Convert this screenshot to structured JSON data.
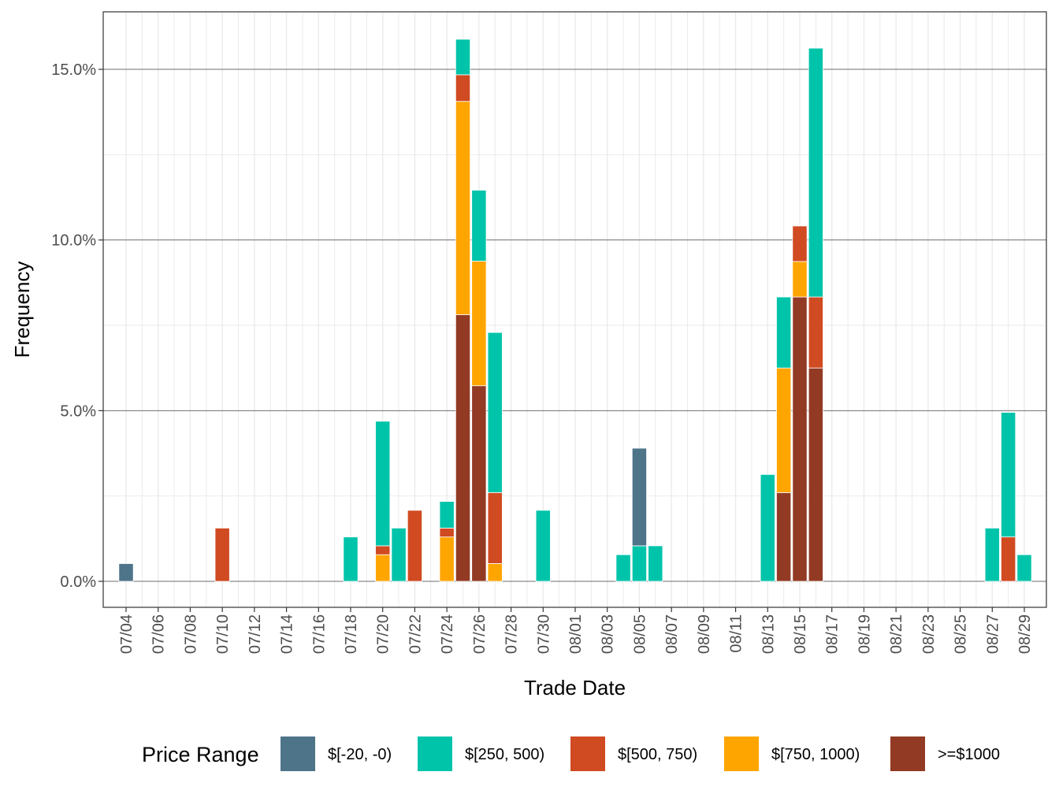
{
  "chart_data": {
    "type": "bar",
    "stacked": true,
    "xlabel": "Trade Date",
    "ylabel": "Frequency",
    "ylim": [
      -0.8,
      16.7
    ],
    "yticks": [
      0,
      5,
      10,
      15
    ],
    "ytick_labels": [
      "0.0%",
      "5.0%",
      "10.0%",
      "15.0%"
    ],
    "xticks": [
      "07/04",
      "07/06",
      "07/08",
      "07/10",
      "07/12",
      "07/14",
      "07/16",
      "07/18",
      "07/20",
      "07/22",
      "07/24",
      "07/26",
      "07/28",
      "07/30",
      "08/01",
      "08/03",
      "08/05",
      "08/07",
      "08/09",
      "08/11",
      "08/13",
      "08/15",
      "08/17",
      "08/19",
      "08/21",
      "08/23",
      "08/25",
      "08/27",
      "08/29"
    ],
    "grid": true,
    "legend": {
      "title": "Price Range",
      "position": "bottom",
      "entries": [
        {
          "key": "neg",
          "label": "$[-20, -0)",
          "color": "#4E7489"
        },
        {
          "key": "p250",
          "label": "$[250, 500)",
          "color": "#00C4AA"
        },
        {
          "key": "p500",
          "label": "$[500, 750)",
          "color": "#D04A22"
        },
        {
          "key": "p750",
          "label": "$[750, 1000)",
          "color": "#FFA500"
        },
        {
          "key": "p1000",
          "label": ">=$1000",
          "color": "#923A24"
        }
      ]
    },
    "stack_order": [
      "p1000",
      "p750",
      "p500",
      "p250",
      "neg"
    ],
    "bars": [
      {
        "date": "07/04",
        "neg": 0.52
      },
      {
        "date": "07/10",
        "p500": 1.56
      },
      {
        "date": "07/18",
        "p250": 1.3
      },
      {
        "date": "07/20",
        "p750": 0.78,
        "p500": 0.26,
        "p250": 3.65
      },
      {
        "date": "07/21",
        "p250": 1.56
      },
      {
        "date": "07/22",
        "p500": 2.08
      },
      {
        "date": "07/24",
        "p750": 1.3,
        "p500": 0.26,
        "p250": 0.78
      },
      {
        "date": "07/25",
        "p1000": 7.81,
        "p750": 6.25,
        "p500": 0.78,
        "p250": 1.04
      },
      {
        "date": "07/26",
        "p1000": 5.73,
        "p750": 3.65,
        "p250": 2.08
      },
      {
        "date": "07/27",
        "p750": 0.52,
        "p500": 2.08,
        "p250": 4.69
      },
      {
        "date": "07/30",
        "p250": 2.08
      },
      {
        "date": "08/04",
        "p250": 0.78
      },
      {
        "date": "08/05",
        "p250": 1.04,
        "neg": 2.86
      },
      {
        "date": "08/06",
        "p250": 1.04
      },
      {
        "date": "08/13",
        "p250": 3.13
      },
      {
        "date": "08/14",
        "p1000": 2.6,
        "p750": 3.65,
        "p250": 2.08
      },
      {
        "date": "08/15",
        "p1000": 8.33,
        "p750": 1.04,
        "p500": 1.04
      },
      {
        "date": "08/16",
        "p1000": 6.25,
        "p500": 2.08,
        "p250": 7.29
      },
      {
        "date": "08/27",
        "p250": 1.56
      },
      {
        "date": "08/28",
        "p500": 1.3,
        "p250": 3.65
      },
      {
        "date": "08/29",
        "p250": 0.78
      }
    ]
  }
}
